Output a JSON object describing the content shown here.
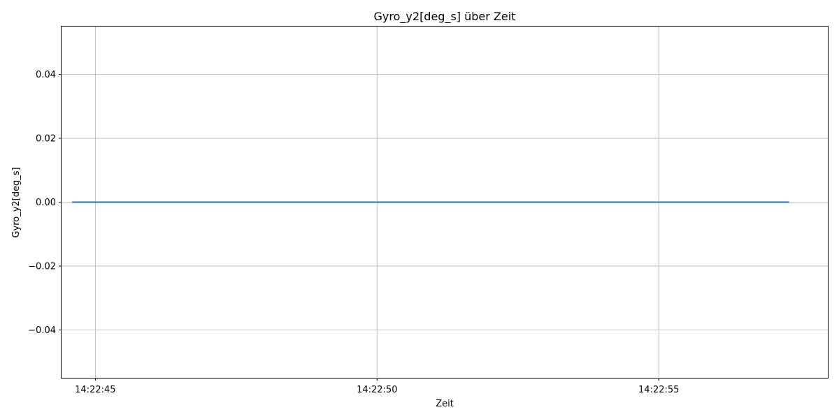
{
  "chart_data": {
    "type": "line",
    "title": "Gyro_y2[deg_s] über Zeit",
    "xlabel": "Zeit",
    "ylabel": "Gyro_y2[deg_s]",
    "grid": true,
    "x_axis": "time",
    "xlim": [
      "14:22:44.4",
      "14:22:58.0"
    ],
    "ylim": [
      -0.055,
      0.055
    ],
    "x_ticks": [
      "14:22:45",
      "14:22:50",
      "14:22:55"
    ],
    "y_ticks": [
      0.04,
      0.02,
      0.0,
      -0.02,
      -0.04
    ],
    "y_tick_labels": [
      "0.04",
      "0.02",
      "0.00",
      "−0.02",
      "−0.04"
    ],
    "series": [
      {
        "color": "#1f77b4",
        "x": [
          "14:22:44.6",
          "14:22:57.3"
        ],
        "values": [
          0.0,
          0.0
        ]
      }
    ]
  }
}
